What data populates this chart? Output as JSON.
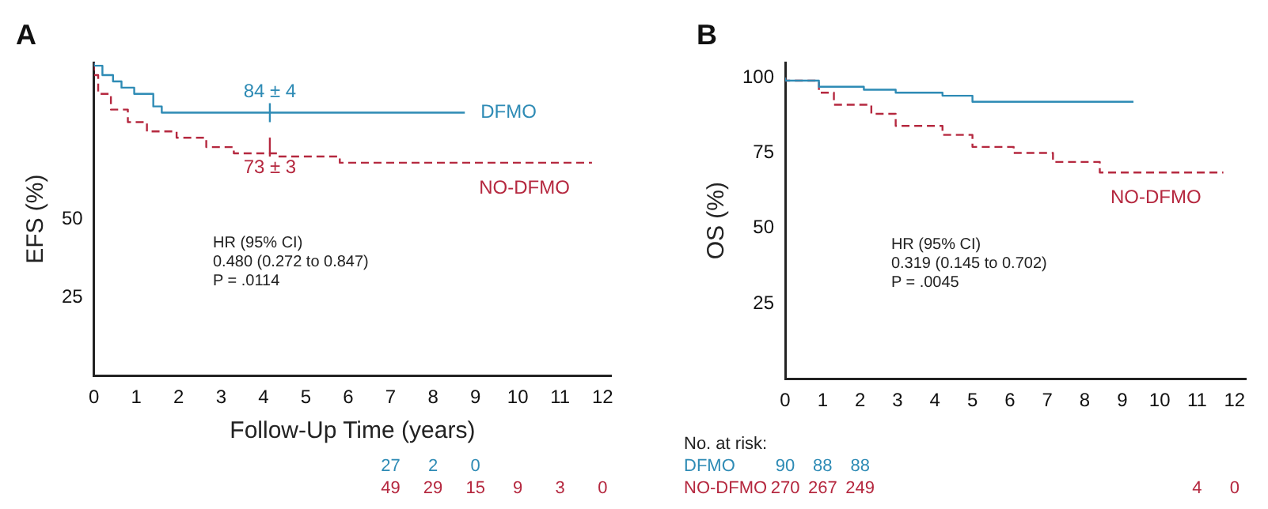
{
  "chart_data": [
    {
      "type": "step",
      "title": "A",
      "xlabel": "Follow-Up Time (years)",
      "ylabel": "EFS (%)",
      "xlim": [
        0,
        12.2
      ],
      "xticks": [
        0,
        1,
        2,
        3,
        4,
        5,
        6,
        7,
        8,
        9,
        10,
        11,
        12
      ],
      "ylim": [
        0,
        100
      ],
      "yticks": [
        25,
        50
      ],
      "grid": false,
      "legend": false,
      "series": [
        {
          "name": "DFMO",
          "color": "#2e8bb5",
          "line_style": "solid",
          "x": [
            0,
            0.2,
            0.45,
            0.65,
            0.95,
            1.4,
            1.6,
            3.3,
            8.75
          ],
          "values": [
            100,
            99,
            96,
            94,
            92,
            90,
            86,
            84,
            84
          ]
        },
        {
          "name": "NO-DFMO",
          "color": "#b5283f",
          "line_style": "dashed",
          "x": [
            0,
            0.1,
            0.4,
            0.8,
            1.25,
            1.95,
            2.65,
            3.3,
            4.35,
            5.8,
            6.8,
            11.75
          ],
          "values": [
            100,
            96,
            90,
            85,
            81,
            78,
            76,
            73,
            71,
            70,
            68,
            68
          ]
        }
      ],
      "annotations": [
        {
          "text": "84 ± 4",
          "x": 4.15,
          "y": 84
        },
        {
          "text": "73 ± 3",
          "x": 4.15,
          "y": 73
        },
        "HR (95% CI)",
        "0.480 (0.272 to 0.847)",
        "P = .0114",
        "\t\t\t\t\t\t\t\t27\t2\t0",
        "\t\t\t\t\t\t\t\t49\t29\t15\t9\t3\t0"
      ]
    },
    {
      "type": "step",
      "title": "B",
      "ylabel": "OS (%)",
      "xlim": [
        0,
        12.3
      ],
      "xticks": [
        0,
        1,
        2,
        3,
        4,
        5,
        6,
        7,
        8,
        9,
        10,
        11,
        12
      ],
      "ylim": [
        0,
        105
      ],
      "yticks": [
        25,
        50,
        75,
        100
      ],
      "grid": false,
      "legend": false,
      "series": [
        {
          "color": "#2e8bb5",
          "line_style": "solid",
          "x": [
            0,
            0.9,
            2.1,
            2.95,
            4.2,
            5,
            5.1,
            9.3
          ],
          "values": [
            100,
            99,
            97,
            96,
            95,
            94,
            92,
            92
          ]
        },
        {
          "name": "NO-DFMO",
          "color": "#b5283f",
          "line_style": "dashed",
          "x": [
            0,
            0.9,
            1.3,
            2.3,
            2.95,
            4.2,
            5,
            6.1,
            7.15,
            8.4,
            8.95,
            11.7
          ],
          "values": [
            100,
            99,
            95,
            91,
            88,
            84,
            81,
            77,
            75,
            72,
            68.5,
            68.5
          ]
        }
      ],
      "annotations": [
        "HR (95% CI)",
        "0.319 (0.145 to 0.702)",
        "P = .0045",
        "No. at risk:\t",
        "DFMO\t90\t88\t88",
        "NO-DFMO\t270\t267\t249\t\t\t\t\t\t\t\t\t4\t0"
      ]
    }
  ]
}
